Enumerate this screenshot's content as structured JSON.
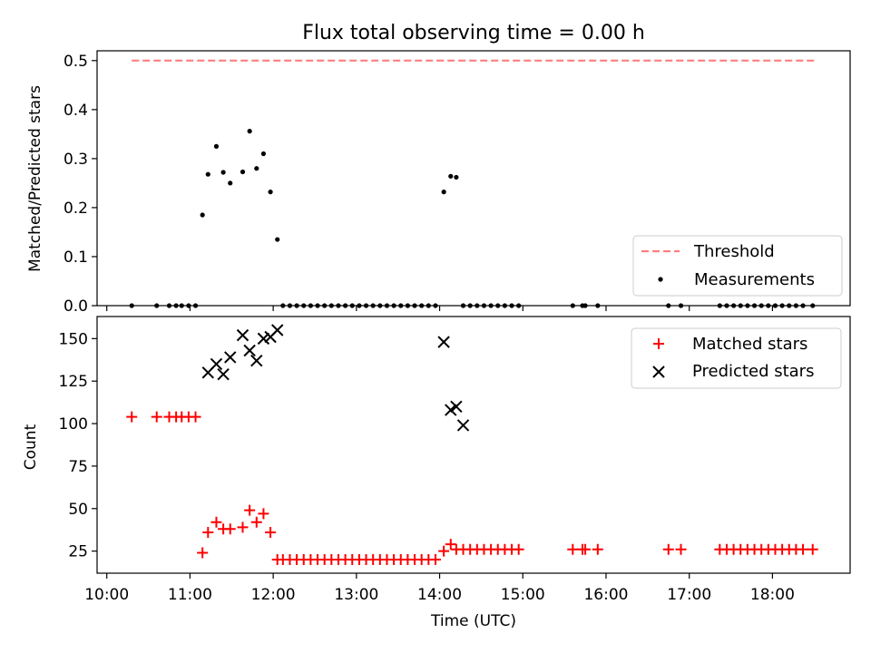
{
  "title": "Flux total observing time = 0.00 h",
  "colors": {
    "threshold": "#ff7f7f",
    "measurements": "#000000",
    "matched": "#ff0000",
    "predicted": "#000000"
  },
  "chart_data": [
    {
      "type": "scatter",
      "panel": "top",
      "title": "Flux total observing time = 0.00 h",
      "xlabel": "",
      "ylabel": "Matched/Predicted stars",
      "ylim": [
        0,
        0.52
      ],
      "yticks": [
        "0.0",
        "0.1",
        "0.2",
        "0.3",
        "0.4",
        "0.5"
      ],
      "legend": {
        "position": "lower-right",
        "threshold_label": "Threshold",
        "measurements_label": "Measurements"
      },
      "threshold": {
        "value": 0.5,
        "x_start": "10:18",
        "x_end": "18:30"
      },
      "measurements": {
        "x": [
          "10:18",
          "10:36",
          "10:45",
          "10:50",
          "10:54",
          "10:59",
          "11:04",
          "11:09",
          "11:13",
          "11:19",
          "11:24",
          "11:29",
          "11:38",
          "11:43",
          "11:48",
          "11:53",
          "11:58",
          "12:03",
          "12:07",
          "12:12",
          "12:17",
          "12:22",
          "12:27",
          "12:32",
          "12:37",
          "12:42",
          "12:47",
          "12:52",
          "12:57",
          "13:02",
          "13:07",
          "13:12",
          "13:17",
          "13:22",
          "13:27",
          "13:32",
          "13:37",
          "13:42",
          "13:47",
          "13:52",
          "13:57",
          "14:03",
          "14:08",
          "14:12",
          "14:17",
          "14:22",
          "14:27",
          "14:32",
          "14:37",
          "14:42",
          "14:47",
          "14:52",
          "14:57",
          "15:36",
          "15:43",
          "15:45",
          "15:54",
          "16:45",
          "16:54",
          "17:22",
          "17:27",
          "17:32",
          "17:37",
          "17:42",
          "17:47",
          "17:52",
          "17:57",
          "18:02",
          "18:07",
          "18:12",
          "18:17",
          "18:22",
          "18:29"
        ],
        "y": [
          0,
          0,
          0,
          0,
          0,
          0,
          0,
          0.185,
          0.268,
          0.325,
          0.272,
          0.25,
          0.273,
          0.356,
          0.28,
          0.31,
          0.232,
          0.135,
          0,
          0,
          0,
          0,
          0,
          0,
          0,
          0,
          0,
          0,
          0,
          0,
          0,
          0,
          0,
          0,
          0,
          0,
          0,
          0,
          0,
          0,
          0,
          0.232,
          0.264,
          0.262,
          0,
          0,
          0,
          0,
          0,
          0,
          0,
          0,
          0,
          0,
          0,
          0,
          0,
          0,
          0,
          0,
          0,
          0,
          0,
          0,
          0,
          0,
          0,
          0,
          0,
          0,
          0,
          0,
          0
        ]
      }
    },
    {
      "type": "scatter",
      "panel": "bottom",
      "xlabel": "Time (UTC)",
      "ylabel": "Count",
      "ylim": [
        12,
        163
      ],
      "yticks": [
        "25",
        "50",
        "75",
        "100",
        "125",
        "150"
      ],
      "xticks": [
        "10:00",
        "11:00",
        "12:00",
        "13:00",
        "14:00",
        "15:00",
        "16:00",
        "17:00",
        "18:00"
      ],
      "xlim": [
        "09:53",
        "18:56"
      ],
      "legend": {
        "position": "top-right",
        "matched_label": "Matched stars",
        "predicted_label": "Predicted stars"
      },
      "matched": {
        "x": [
          "10:18",
          "10:36",
          "10:45",
          "10:50",
          "10:54",
          "10:59",
          "11:04",
          "11:09",
          "11:13",
          "11:19",
          "11:24",
          "11:29",
          "11:38",
          "11:43",
          "11:48",
          "11:53",
          "11:58",
          "12:03",
          "12:07",
          "12:12",
          "12:17",
          "12:22",
          "12:27",
          "12:32",
          "12:37",
          "12:42",
          "12:47",
          "12:52",
          "12:57",
          "13:02",
          "13:07",
          "13:12",
          "13:17",
          "13:22",
          "13:27",
          "13:32",
          "13:37",
          "13:42",
          "13:47",
          "13:52",
          "13:57",
          "14:03",
          "14:08",
          "14:12",
          "14:17",
          "14:22",
          "14:27",
          "14:32",
          "14:37",
          "14:42",
          "14:47",
          "14:52",
          "14:57",
          "15:36",
          "15:43",
          "15:45",
          "15:54",
          "16:45",
          "16:54",
          "17:22",
          "17:27",
          "17:32",
          "17:37",
          "17:42",
          "17:47",
          "17:52",
          "17:57",
          "18:02",
          "18:07",
          "18:12",
          "18:17",
          "18:22",
          "18:29"
        ],
        "y": [
          104,
          104,
          104,
          104,
          104,
          104,
          104,
          24,
          36,
          42,
          38,
          38,
          39,
          49,
          42,
          47,
          36,
          20,
          20,
          20,
          20,
          20,
          20,
          20,
          20,
          20,
          20,
          20,
          20,
          20,
          20,
          20,
          20,
          20,
          20,
          20,
          20,
          20,
          20,
          20,
          20,
          25,
          29,
          26,
          26,
          26,
          26,
          26,
          26,
          26,
          26,
          26,
          26,
          26,
          26,
          26,
          26,
          26,
          26,
          26,
          26,
          26,
          26,
          26,
          26,
          26,
          26,
          26,
          26,
          26,
          26,
          26,
          26
        ]
      },
      "predicted": {
        "x": [
          "11:13",
          "11:19",
          "11:24",
          "11:29",
          "11:38",
          "11:43",
          "11:48",
          "11:53",
          "11:58",
          "12:03",
          "14:03",
          "14:08",
          "14:12",
          "14:17"
        ],
        "y": [
          130,
          135,
          129,
          139,
          152,
          143,
          137,
          150,
          151,
          155,
          148,
          108,
          110,
          99
        ]
      }
    }
  ]
}
